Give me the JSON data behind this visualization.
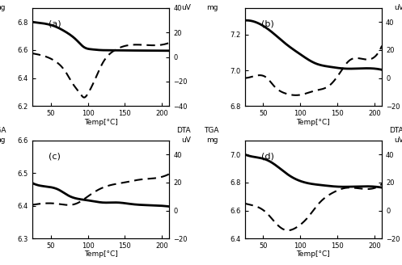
{
  "panels": [
    {
      "label": "(a)",
      "tga_ylim": [
        6.2,
        6.9
      ],
      "tga_yticks": [
        6.2,
        6.4,
        6.6,
        6.8
      ],
      "dta_ylim": [
        -40,
        40
      ],
      "dta_yticks": [
        -40,
        -20,
        0,
        20,
        40
      ],
      "tga_curve": {
        "x": [
          25,
          40,
          55,
          70,
          85,
          95,
          105,
          115,
          130,
          150,
          170,
          200
        ],
        "y": [
          6.8,
          6.79,
          6.77,
          6.73,
          6.67,
          6.62,
          6.605,
          6.6,
          6.598,
          6.597,
          6.596,
          6.595
        ]
      },
      "dta_curve": {
        "x": [
          25,
          40,
          55,
          70,
          80,
          90,
          95,
          100,
          110,
          120,
          135,
          150,
          170,
          200
        ],
        "y": [
          3,
          1,
          -3,
          -12,
          -22,
          -30,
          -33,
          -30,
          -18,
          -5,
          5,
          9,
          10,
          10
        ]
      }
    },
    {
      "label": "(b)",
      "tga_ylim": [
        6.8,
        7.35
      ],
      "tga_yticks": [
        6.8,
        7.0,
        7.2
      ],
      "dta_ylim": [
        -20,
        50
      ],
      "dta_yticks": [
        -20,
        0,
        20,
        40
      ],
      "tga_curve": {
        "x": [
          25,
          40,
          60,
          80,
          100,
          120,
          140,
          160,
          175,
          200
        ],
        "y": [
          7.28,
          7.27,
          7.22,
          7.15,
          7.09,
          7.04,
          7.02,
          7.01,
          7.01,
          7.01
        ]
      },
      "dta_curve": {
        "x": [
          25,
          35,
          45,
          55,
          65,
          80,
          100,
          120,
          140,
          155,
          165,
          180,
          200
        ],
        "y": [
          0,
          1,
          2,
          0,
          -6,
          -11,
          -12,
          -9,
          -5,
          5,
          12,
          14,
          15
        ]
      }
    },
    {
      "label": "(c)",
      "tga_ylim": [
        6.3,
        6.6
      ],
      "tga_yticks": [
        6.3,
        6.4,
        6.5,
        6.6
      ],
      "dta_ylim": [
        -20,
        50
      ],
      "dta_yticks": [
        -20,
        0,
        20,
        40
      ],
      "tga_curve": {
        "x": [
          25,
          40,
          60,
          75,
          90,
          105,
          120,
          140,
          160,
          180,
          200
        ],
        "y": [
          6.47,
          6.46,
          6.45,
          6.43,
          6.42,
          6.415,
          6.41,
          6.41,
          6.405,
          6.402,
          6.4
        ]
      },
      "dta_curve": {
        "x": [
          25,
          40,
          55,
          70,
          85,
          100,
          115,
          130,
          150,
          170,
          190,
          200
        ],
        "y": [
          4,
          5,
          5,
          4,
          5,
          10,
          15,
          18,
          20,
          22,
          23,
          24
        ]
      }
    },
    {
      "label": "(d)",
      "tga_ylim": [
        6.4,
        7.1
      ],
      "tga_yticks": [
        6.4,
        6.6,
        6.8,
        7.0
      ],
      "dta_ylim": [
        -20,
        50
      ],
      "dta_yticks": [
        -20,
        0,
        20,
        40
      ],
      "tga_curve": {
        "x": [
          25,
          40,
          55,
          70,
          85,
          100,
          115,
          130,
          150,
          170,
          200
        ],
        "y": [
          7.0,
          6.98,
          6.96,
          6.91,
          6.85,
          6.81,
          6.79,
          6.78,
          6.77,
          6.77,
          6.77
        ]
      },
      "dta_curve": {
        "x": [
          25,
          40,
          55,
          65,
          80,
          95,
          110,
          125,
          145,
          160,
          175,
          200
        ],
        "y": [
          5,
          3,
          -2,
          -8,
          -14,
          -12,
          -5,
          5,
          13,
          16,
          16,
          16
        ]
      }
    }
  ],
  "xlim": [
    25,
    210
  ],
  "xticks": [
    50,
    100,
    150,
    200
  ],
  "xlabel": "Temp[°C]",
  "tga_label_top": "TGA",
  "tga_label_bottom": "mg",
  "dta_label_top": "DTA",
  "dta_label_bottom": "uV",
  "line_color": "#000000",
  "linewidth_tga": 2.0,
  "linewidth_dta": 1.5
}
